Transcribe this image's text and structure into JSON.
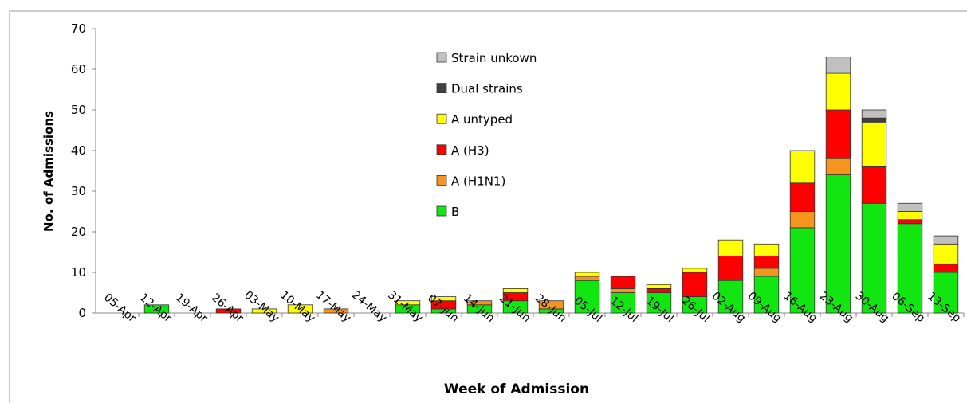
{
  "chart_data": {
    "type": "stacked-bar",
    "x_label": "Week of Admission",
    "y_label": "No. of Admissions",
    "categories": [
      "05-Apr",
      "12-Apr",
      "19-Apr",
      "26-Apr",
      "03-May",
      "10-May",
      "17-May",
      "24-May",
      "31-May",
      "07-Jun",
      "14-Jun",
      "21-Jun",
      "28-Jun",
      "05-Jul",
      "12-Jul",
      "19-Jul",
      "26-Jul",
      "02-Aug",
      "09-Aug",
      "16-Aug",
      "23-Aug",
      "30-Aug",
      "06-Sep",
      "13-Sep"
    ],
    "series": [
      {
        "name": "B",
        "color": "#11e611",
        "values": [
          0,
          2,
          0,
          0,
          0,
          0,
          0,
          0,
          2,
          1,
          2,
          3,
          1,
          8,
          5,
          5,
          4,
          8,
          9,
          21,
          34,
          27,
          22,
          10
        ]
      },
      {
        "name": "A (H1N1)",
        "color": "#f7941d",
        "values": [
          0,
          0,
          0,
          0,
          0,
          0,
          1,
          0,
          0,
          0,
          1,
          0,
          2,
          1,
          1,
          0,
          0,
          0,
          2,
          4,
          4,
          0,
          0,
          0
        ]
      },
      {
        "name": "A (H3)",
        "color": "#ff0000",
        "values": [
          0,
          0,
          0,
          1,
          0,
          0,
          0,
          0,
          0,
          2,
          0,
          2,
          0,
          0,
          3,
          1,
          6,
          6,
          3,
          7,
          12,
          9,
          1,
          2
        ]
      },
      {
        "name": "A untyped",
        "color": "#ffff00",
        "values": [
          0,
          0,
          0,
          0,
          1,
          2,
          0,
          0,
          1,
          1,
          0,
          1,
          0,
          1,
          0,
          1,
          1,
          4,
          3,
          8,
          9,
          11,
          2,
          5
        ]
      },
      {
        "name": "Dual strains",
        "color": "#404040",
        "values": [
          0,
          0,
          0,
          0,
          0,
          0,
          0,
          0,
          0,
          0,
          0,
          0,
          0,
          0,
          0,
          0,
          0,
          0,
          0,
          0,
          0,
          1,
          0,
          0
        ]
      },
      {
        "name": "Strain unkown",
        "color": "#c0c0c0",
        "values": [
          0,
          0,
          0,
          0,
          0,
          0,
          0,
          0,
          0,
          0,
          0,
          0,
          0,
          0,
          0,
          0,
          0,
          0,
          0,
          0,
          4,
          2,
          2,
          2
        ]
      }
    ],
    "ylim": [
      0,
      70
    ],
    "yticks": [
      0,
      10,
      20,
      30,
      40,
      50,
      60,
      70
    ],
    "legend": "top-center"
  }
}
